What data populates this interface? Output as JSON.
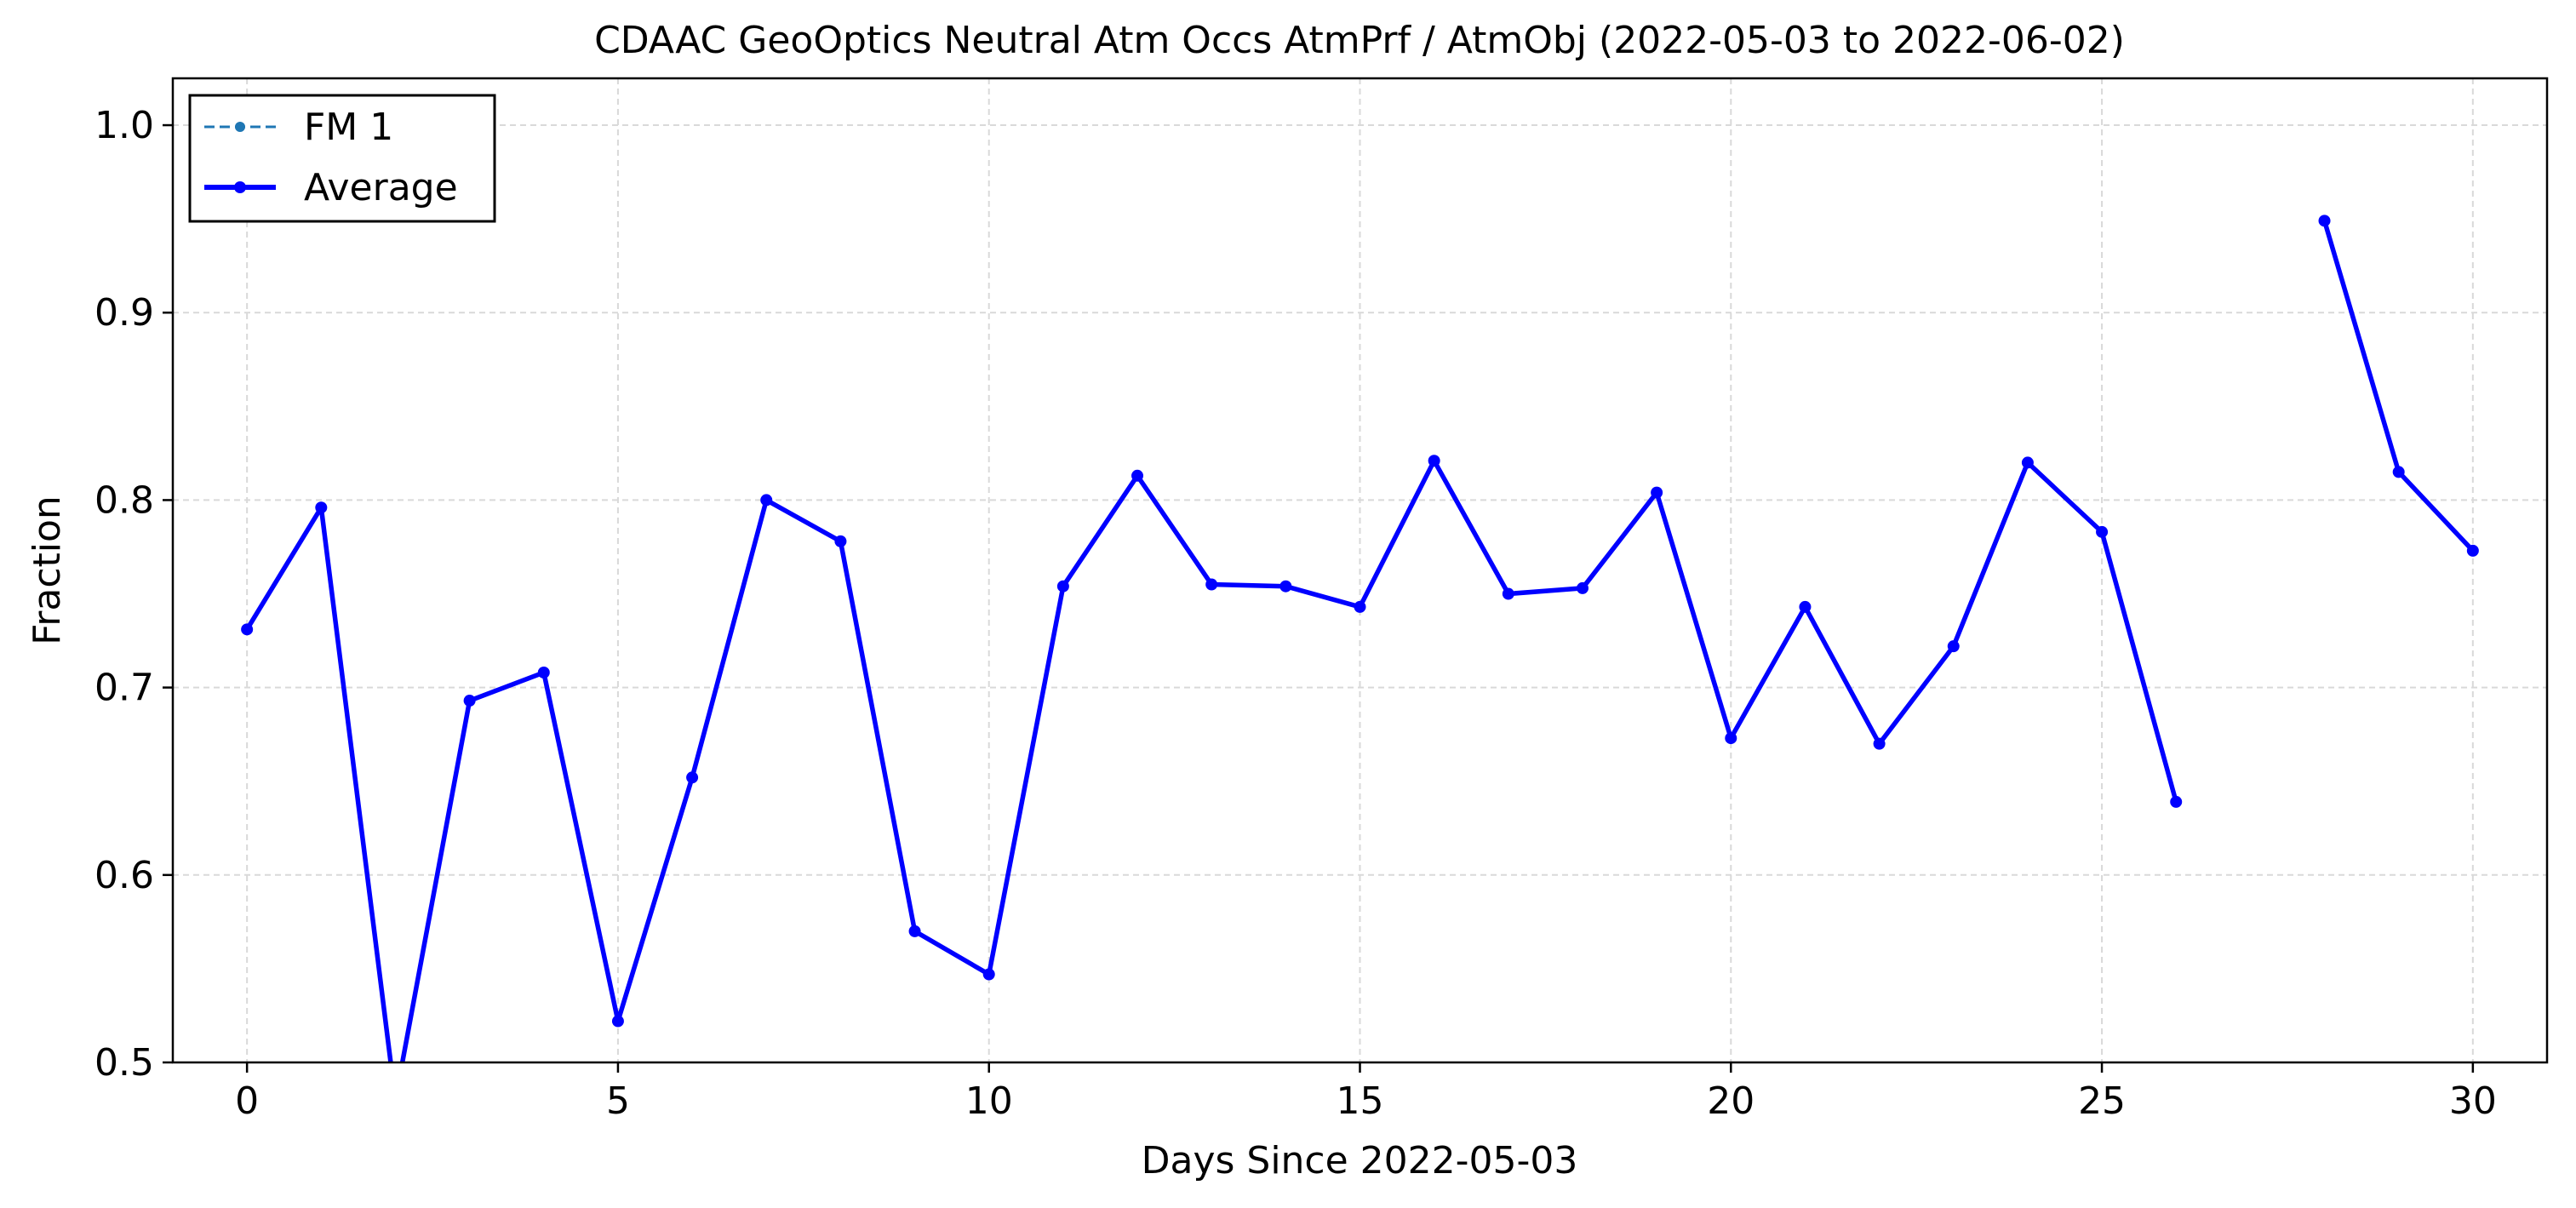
{
  "chart_data": {
    "type": "line",
    "title": "CDAAC GeoOptics Neutral Atm Occs AtmPrf / AtmObj (2022-05-03 to 2022-06-02)",
    "xlabel": "Days Since 2022-05-03",
    "ylabel": "Fraction",
    "xlim": [
      -1,
      31
    ],
    "ylim": [
      0.5,
      1.025
    ],
    "xticks": [
      0,
      5,
      10,
      15,
      20,
      25,
      30
    ],
    "yticks": [
      0.5,
      0.6,
      0.7,
      0.8,
      0.9,
      1.0
    ],
    "xtick_labels": [
      "0",
      "5",
      "10",
      "15",
      "20",
      "25",
      "30"
    ],
    "ytick_labels": [
      "0.5",
      "0.6",
      "0.7",
      "0.8",
      "0.9",
      "1.0"
    ],
    "grid": true,
    "legend_position": "top-left",
    "series": [
      {
        "name": "FM 1",
        "color": "#1f77b4",
        "style": "dashed",
        "x": [
          0,
          1,
          2,
          3,
          4,
          5,
          6,
          7,
          8,
          9,
          10,
          11,
          12,
          13,
          14,
          15,
          16,
          17,
          18,
          19,
          20,
          21,
          22,
          23,
          24,
          25,
          26,
          27,
          28,
          29,
          30
        ],
        "y": [
          0.731,
          0.796,
          0.48,
          0.693,
          0.708,
          0.522,
          0.652,
          0.8,
          0.778,
          0.57,
          0.547,
          0.754,
          0.813,
          0.755,
          0.754,
          0.743,
          0.821,
          0.75,
          0.753,
          0.804,
          0.673,
          0.743,
          0.67,
          0.722,
          0.82,
          0.783,
          0.639,
          null,
          0.949,
          0.815,
          0.773
        ]
      },
      {
        "name": "Average",
        "color": "#0000ff",
        "style": "solid",
        "x": [
          0,
          1,
          2,
          3,
          4,
          5,
          6,
          7,
          8,
          9,
          10,
          11,
          12,
          13,
          14,
          15,
          16,
          17,
          18,
          19,
          20,
          21,
          22,
          23,
          24,
          25,
          26,
          27,
          28,
          29,
          30
        ],
        "y": [
          0.731,
          0.796,
          0.48,
          0.693,
          0.708,
          0.522,
          0.652,
          0.8,
          0.778,
          0.57,
          0.547,
          0.754,
          0.813,
          0.755,
          0.754,
          0.743,
          0.821,
          0.75,
          0.753,
          0.804,
          0.673,
          0.743,
          0.67,
          0.722,
          0.82,
          0.783,
          0.639,
          null,
          0.949,
          0.815,
          0.773
        ]
      }
    ]
  }
}
